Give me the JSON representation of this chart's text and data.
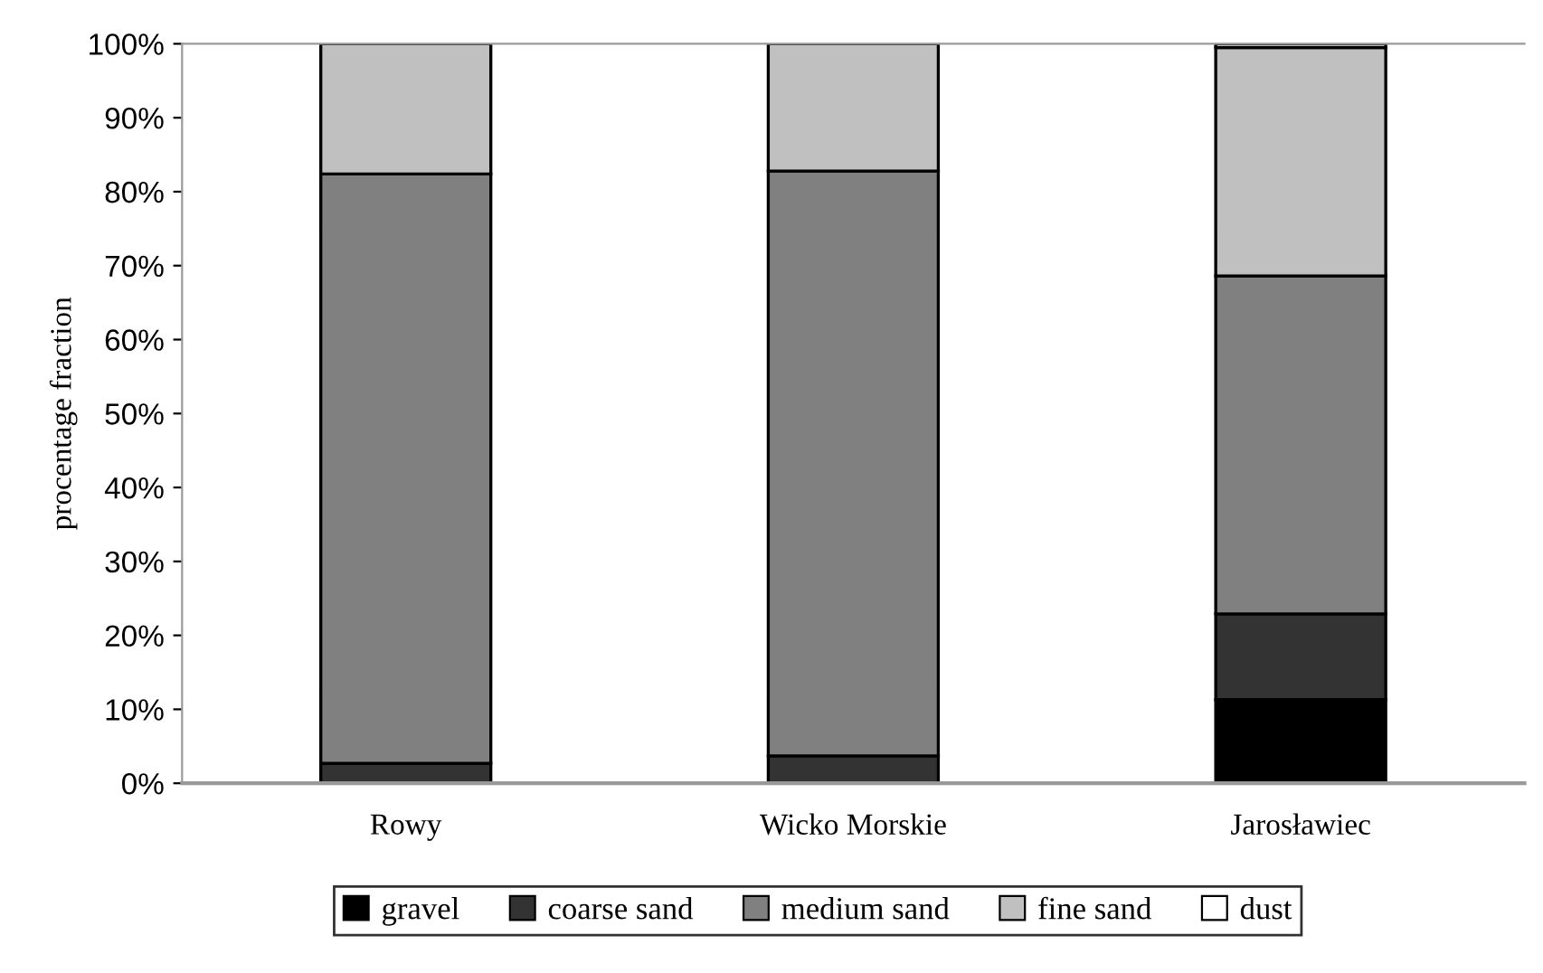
{
  "chart_data": {
    "type": "bar",
    "stacked": true,
    "ylabel": "procentage fraction",
    "categories": [
      "Rowy",
      "Wicko Morskie",
      "Jarosławiec"
    ],
    "series": [
      {
        "name": "gravel",
        "color": "#000000",
        "values": [
          0,
          0,
          11.3
        ]
      },
      {
        "name": "coarse sand",
        "color": "#333333",
        "values": [
          2.7,
          3.7,
          11.6
        ]
      },
      {
        "name": "medium sand",
        "color": "#808080",
        "values": [
          79.7,
          79.1,
          45.7
        ]
      },
      {
        "name": "fine sand",
        "color": "#c0c0c0",
        "values": [
          17.6,
          17.2,
          30.9
        ]
      },
      {
        "name": "dust",
        "color": "#ffffff",
        "values": [
          0,
          0,
          0.5
        ]
      }
    ],
    "ylim": [
      0,
      100
    ],
    "yticks": [
      {
        "value": 0,
        "label": "0%"
      },
      {
        "value": 10,
        "label": "10%"
      },
      {
        "value": 20,
        "label": "20%"
      },
      {
        "value": 30,
        "label": "30%"
      },
      {
        "value": 40,
        "label": "40%"
      },
      {
        "value": 50,
        "label": "50%"
      },
      {
        "value": 60,
        "label": "60%"
      },
      {
        "value": 70,
        "label": "70%"
      },
      {
        "value": 80,
        "label": "80%"
      },
      {
        "value": 90,
        "label": "90%"
      },
      {
        "value": 100,
        "label": "100%"
      }
    ],
    "legend": "bottom"
  }
}
